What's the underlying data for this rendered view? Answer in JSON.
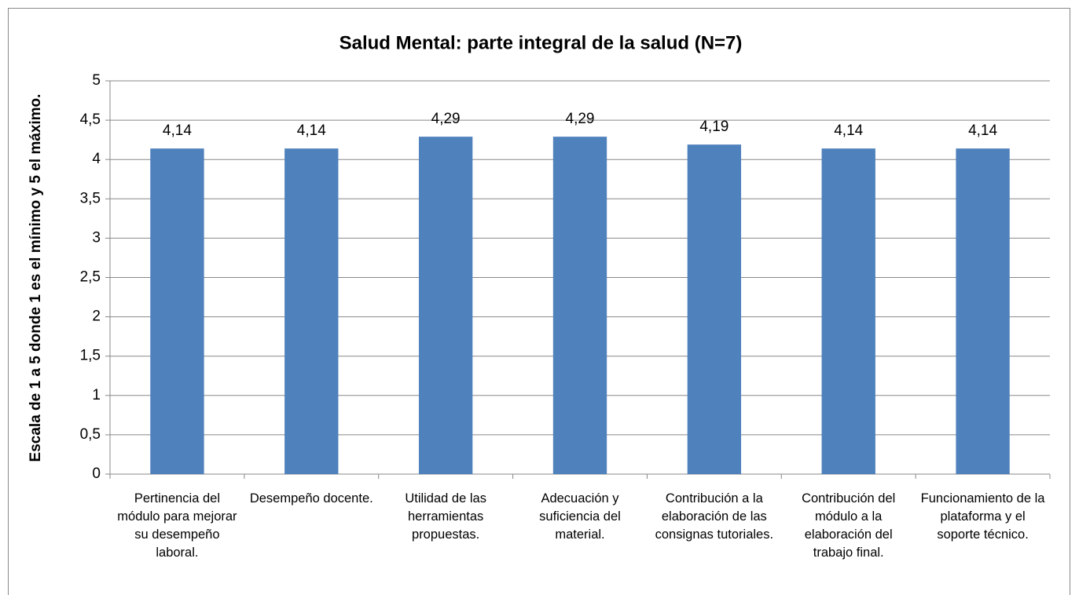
{
  "chart_data": {
    "type": "bar",
    "title": "Salud Mental: parte integral de la salud (N=7)",
    "y_label": "Escala  de 1 a 5 donde 1 es el mínimo y 5 el máximo.",
    "categories": [
      "Pertinencia del módulo para mejorar su desempeño laboral.",
      "Desempeño docente.",
      "Utilidad de las herramientas propuestas.",
      "Adecuación y suficiencia del material.",
      "Contribución a la elaboración de las consignas tutoriales.",
      "Contribución del módulo a la elaboración del trabajo final.",
      "Funcionamiento de la plataforma y el soporte técnico."
    ],
    "values": [
      4.14,
      4.14,
      4.29,
      4.29,
      4.19,
      4.14,
      4.14
    ],
    "value_labels": [
      "4,14",
      "4,14",
      "4,29",
      "4,29",
      "4,19",
      "4,14",
      "4,14"
    ],
    "color": "#4f81bd",
    "ylim": [
      0,
      5
    ],
    "yticks": [
      0,
      {
        "value": 0.5,
        "label": "0,5"
      },
      1,
      {
        "value": 1.5,
        "label": "1,5"
      },
      2,
      {
        "value": 2.5,
        "label": "2,5"
      },
      3,
      {
        "value": 3.5,
        "label": "3,5"
      },
      4,
      {
        "value": 4.5,
        "label": "4,5"
      },
      5
    ],
    "grid": true
  }
}
